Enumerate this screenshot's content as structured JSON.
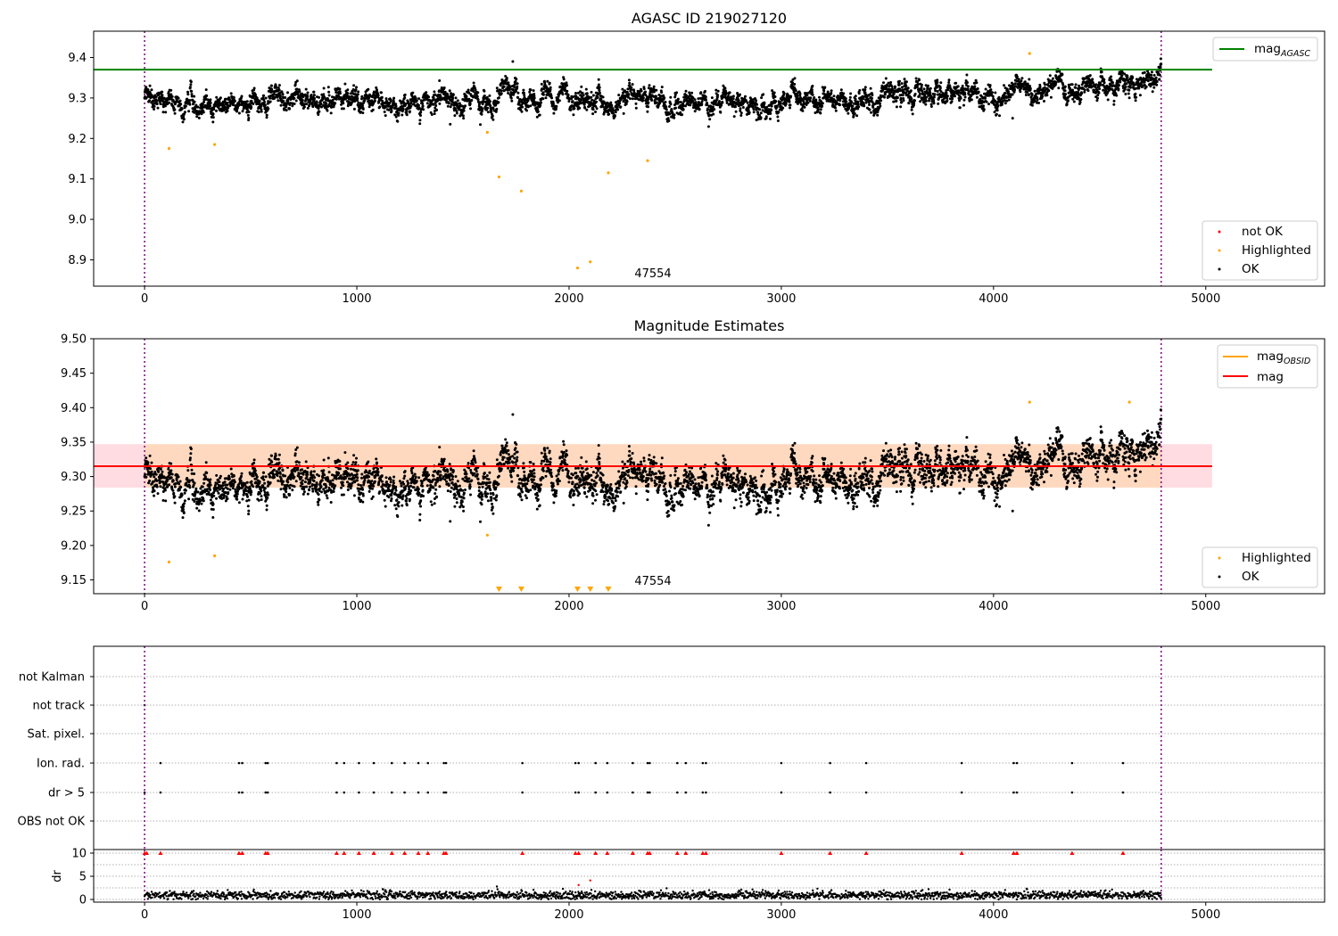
{
  "colors": {
    "ok": "#000000",
    "highlighted": "#ffa500",
    "not_ok": "#ff0000",
    "mag_agasc": "#008000",
    "mag_obsid": "#ffa500",
    "mag": "#ff0000",
    "vline": "#800080",
    "band_outer": "#ffc0cb",
    "band_inner": "#ffd8b8",
    "grid": "#b0b0b0"
  },
  "chart_data": [
    {
      "type": "scatter",
      "title": "AGASC ID 219027120",
      "xlim": [
        -240,
        5560
      ],
      "ylim": [
        8.835,
        9.465
      ],
      "xticks": [
        "0",
        "1000",
        "2000",
        "3000",
        "4000",
        "5000"
      ],
      "xtick_values": [
        0,
        1000,
        2000,
        3000,
        4000,
        5000
      ],
      "yticks": [
        "8.9",
        "9.0",
        "9.1",
        "9.2",
        "9.3",
        "9.4"
      ],
      "ytick_values": [
        8.9,
        9.0,
        9.1,
        9.2,
        9.3,
        9.4
      ],
      "vlines": [
        0,
        4790
      ],
      "hline": {
        "name": "mag_AGASC",
        "y": 9.37,
        "x_end": 5030
      },
      "annotation": {
        "text": "47554",
        "x": 2390,
        "y": 8.86
      },
      "highlighted_points": [
        [
          115,
          9.175
        ],
        [
          330,
          9.185
        ],
        [
          1615,
          9.215
        ],
        [
          1670,
          9.105
        ],
        [
          1775,
          9.07
        ],
        [
          2040,
          8.88
        ],
        [
          2100,
          8.895
        ],
        [
          2185,
          9.115
        ],
        [
          2370,
          9.145
        ],
        [
          4170,
          9.41
        ]
      ],
      "not_ok_points": [],
      "outlier_ok_points": [
        [
          1440,
          9.235
        ],
        [
          4090,
          9.25
        ],
        [
          1735,
          9.39
        ]
      ],
      "legend_lines": [
        {
          "name": "mag",
          "sub": "AGASC"
        }
      ],
      "legend_markers": [
        {
          "name": "not OK"
        },
        {
          "name": "Highlighted"
        },
        {
          "name": "OK"
        }
      ]
    },
    {
      "type": "scatter",
      "title": "Magnitude Estimates",
      "xlim": [
        -240,
        5560
      ],
      "ylim": [
        9.13,
        9.5
      ],
      "xticks": [
        "0",
        "1000",
        "2000",
        "3000",
        "4000",
        "5000"
      ],
      "xtick_values": [
        0,
        1000,
        2000,
        3000,
        4000,
        5000
      ],
      "yticks": [
        "9.15",
        "9.20",
        "9.25",
        "9.30",
        "9.35",
        "9.40",
        "9.45",
        "9.50"
      ],
      "ytick_values": [
        9.15,
        9.2,
        9.25,
        9.3,
        9.35,
        9.4,
        9.45,
        9.5
      ],
      "vlines": [
        0,
        4790
      ],
      "hline": {
        "name": "mag",
        "y": 9.315,
        "x_end": 5030
      },
      "band": {
        "y_low": 9.284,
        "y_high": 9.347,
        "x_end": 5030
      },
      "annotation": {
        "text": "47554",
        "x": 2390,
        "y": 9.142
      },
      "highlighted_points": [
        [
          115,
          9.176
        ],
        [
          330,
          9.185
        ],
        [
          1615,
          9.215
        ],
        [
          4170,
          9.408
        ],
        [
          4640,
          9.408
        ]
      ],
      "offscale_markers_x": [
        1670,
        1775,
        2040,
        2100,
        2185
      ],
      "outlier_ok_points": [
        [
          1440,
          9.235
        ],
        [
          4090,
          9.25
        ],
        [
          1735,
          9.39
        ]
      ],
      "legend_lines": [
        {
          "name": "mag",
          "sub": "OBSID"
        },
        {
          "name": "mag",
          "sub": ""
        }
      ],
      "legend_markers": [
        {
          "name": "Highlighted"
        },
        {
          "name": "OK"
        }
      ]
    },
    {
      "type": "scatter",
      "title": "",
      "xlim": [
        -240,
        5560
      ],
      "xticks": [
        "0",
        "1000",
        "2000",
        "3000",
        "4000",
        "5000"
      ],
      "xtick_values": [
        0,
        1000,
        2000,
        3000,
        4000,
        5000
      ],
      "flag_rows": [
        "not Kalman",
        "not track",
        "Sat. pixel.",
        "Ion. rad.",
        "dr > 5",
        "OBS not OK"
      ],
      "flag_points": {
        "not track": [
          0
        ],
        "Ion. rad.": [
          75,
          445,
          460,
          570,
          580,
          905,
          940,
          1010,
          1080,
          1165,
          1225,
          1290,
          1335,
          1410,
          1420,
          1780,
          2030,
          2045,
          2125,
          2180,
          2300,
          2370,
          2380,
          2510,
          2550,
          2630,
          2645,
          3000,
          3230,
          3400,
          3850,
          4095,
          4110,
          4370,
          4610
        ],
        "dr > 5": [
          0,
          75,
          445,
          460,
          570,
          580,
          905,
          940,
          1010,
          1080,
          1165,
          1225,
          1290,
          1335,
          1410,
          1420,
          1780,
          2030,
          2045,
          2125,
          2180,
          2300,
          2370,
          2380,
          2510,
          2550,
          2630,
          2645,
          3000,
          3230,
          3400,
          3850,
          4095,
          4110,
          4370,
          4610
        ]
      },
      "dr": {
        "ylabel": "dr",
        "ylim": [
          0,
          10
        ],
        "yticks": [
          "0",
          "5",
          "10"
        ],
        "ytick_values": [
          0,
          5,
          10
        ],
        "capped_x": [
          0,
          10,
          75,
          445,
          460,
          570,
          580,
          905,
          940,
          1010,
          1080,
          1165,
          1225,
          1290,
          1335,
          1410,
          1420,
          1780,
          2030,
          2045,
          2125,
          2180,
          2300,
          2370,
          2380,
          2510,
          2550,
          2630,
          2645,
          3000,
          3230,
          3400,
          3850,
          4095,
          4110,
          4370,
          4610
        ],
        "red_points": [
          [
            2045,
            3.1
          ],
          [
            2100,
            4.1
          ]
        ],
        "black_points": [
          [
            1660,
            2.8
          ]
        ]
      }
    }
  ]
}
